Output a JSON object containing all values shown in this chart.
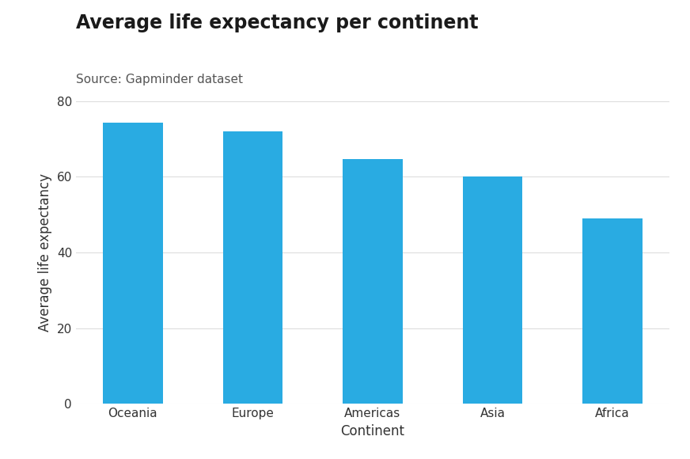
{
  "title": "Average life expectancy per continent",
  "subtitle": "Source: Gapminder dataset",
  "xlabel": "Continent",
  "ylabel": "Average life expectancy",
  "categories": [
    "Oceania",
    "Europe",
    "Americas",
    "Asia",
    "Africa"
  ],
  "values": [
    74.2,
    71.9,
    64.7,
    60.1,
    48.9
  ],
  "bar_color": "#29abe2",
  "background_color": "#ffffff",
  "plot_background_color": "#ffffff",
  "grid_color": "#dddddd",
  "ylim": [
    0,
    80
  ],
  "yticks": [
    0,
    20,
    40,
    60,
    80
  ],
  "title_fontsize": 17,
  "subtitle_fontsize": 11,
  "axis_label_fontsize": 12,
  "tick_fontsize": 11
}
